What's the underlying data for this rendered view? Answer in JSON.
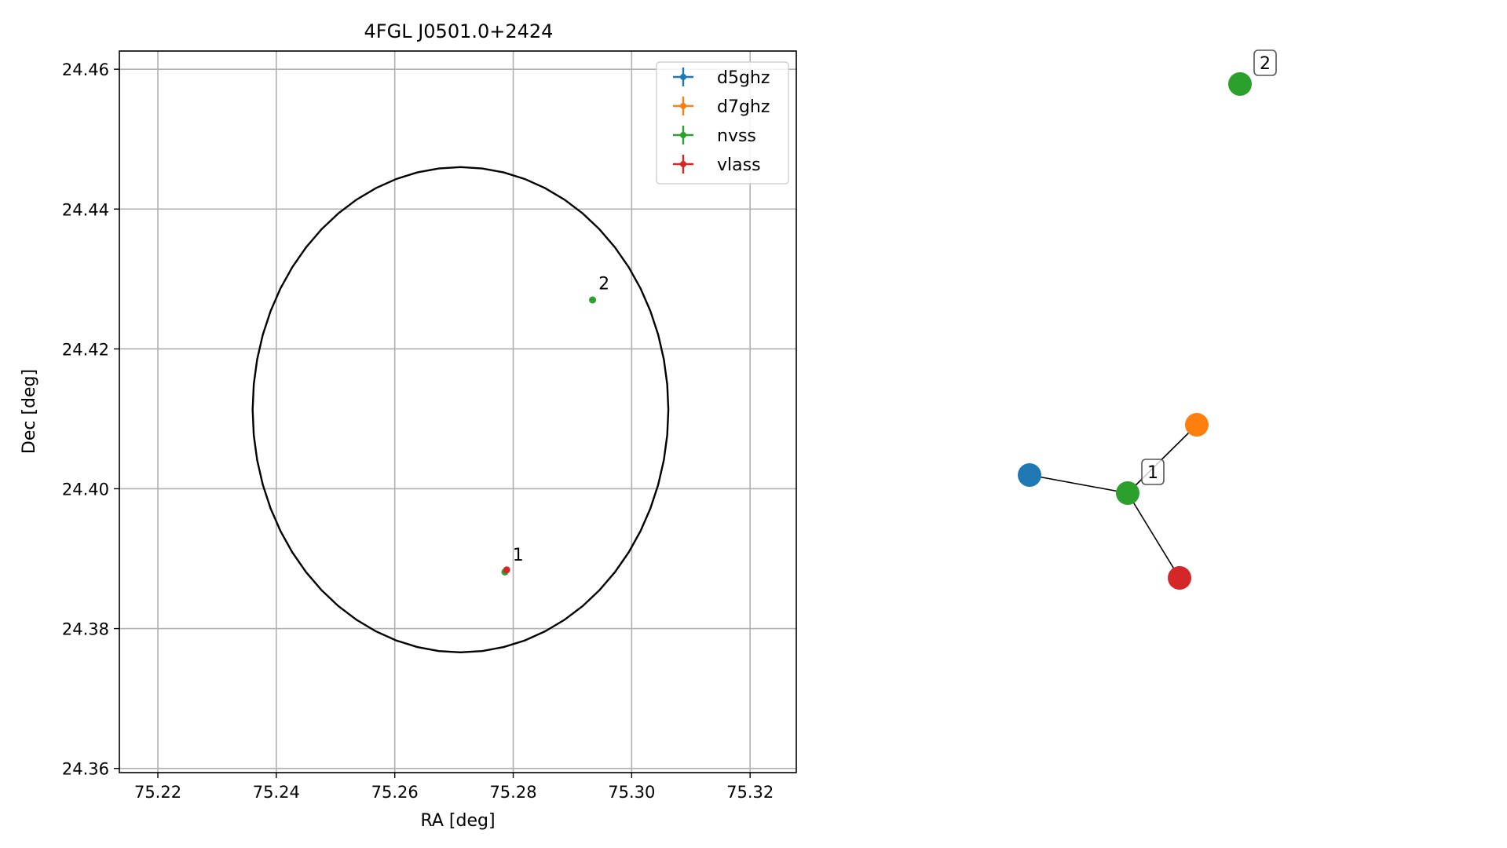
{
  "chart_data": [
    {
      "type": "scatter",
      "title": "4FGL J0501.0+2424",
      "xlabel": "RA [deg]",
      "ylabel": "Dec [deg]",
      "xlim": [
        75.2135,
        75.3278
      ],
      "ylim": [
        24.3594,
        24.4626
      ],
      "xticks": [
        75.22,
        75.24,
        75.26,
        75.28,
        75.3,
        75.32
      ],
      "xtick_labels": [
        "75.22",
        "75.24",
        "75.26",
        "75.28",
        "75.30",
        "75.32"
      ],
      "yticks": [
        24.36,
        24.38,
        24.4,
        24.42,
        24.44,
        24.46
      ],
      "ytick_labels": [
        "24.36",
        "24.38",
        "24.40",
        "24.42",
        "24.44",
        "24.46"
      ],
      "grid": true,
      "legend_position": "top-right",
      "series": [
        {
          "name": "d5ghz",
          "color": "#1f77b4",
          "points": []
        },
        {
          "name": "d7ghz",
          "color": "#ff7f0e",
          "points": []
        },
        {
          "name": "nvss",
          "color": "#2ca02c",
          "points": [
            [
              75.2786,
              24.3881
            ],
            [
              75.2934,
              24.427
            ]
          ]
        },
        {
          "name": "vlass",
          "color": "#d62728",
          "points": [
            [
              75.2789,
              24.3884
            ]
          ]
        }
      ],
      "ellipse": {
        "center": [
          75.2711,
          24.4113
        ],
        "ra_semi_axis": 0.0351,
        "dec_semi_axis": 0.0347,
        "color": "#000000"
      },
      "annotations": [
        {
          "text": "1",
          "x": 75.2799,
          "y": 24.3897
        },
        {
          "text": "2",
          "x": 75.2944,
          "y": 24.4285
        }
      ]
    },
    {
      "type": "network",
      "nodes": [
        {
          "id": "d5ghz",
          "color": "#1f77b4"
        },
        {
          "id": "d7ghz",
          "color": "#ff7f0e"
        },
        {
          "id": "nvss-1",
          "color": "#2ca02c",
          "label": "1"
        },
        {
          "id": "vlass",
          "color": "#d62728"
        },
        {
          "id": "nvss-2",
          "color": "#2ca02c",
          "label": "2"
        }
      ],
      "edges": [
        [
          "d5ghz",
          "nvss-1"
        ],
        [
          "d7ghz",
          "nvss-1"
        ],
        [
          "vlass",
          "nvss-1"
        ]
      ]
    }
  ]
}
